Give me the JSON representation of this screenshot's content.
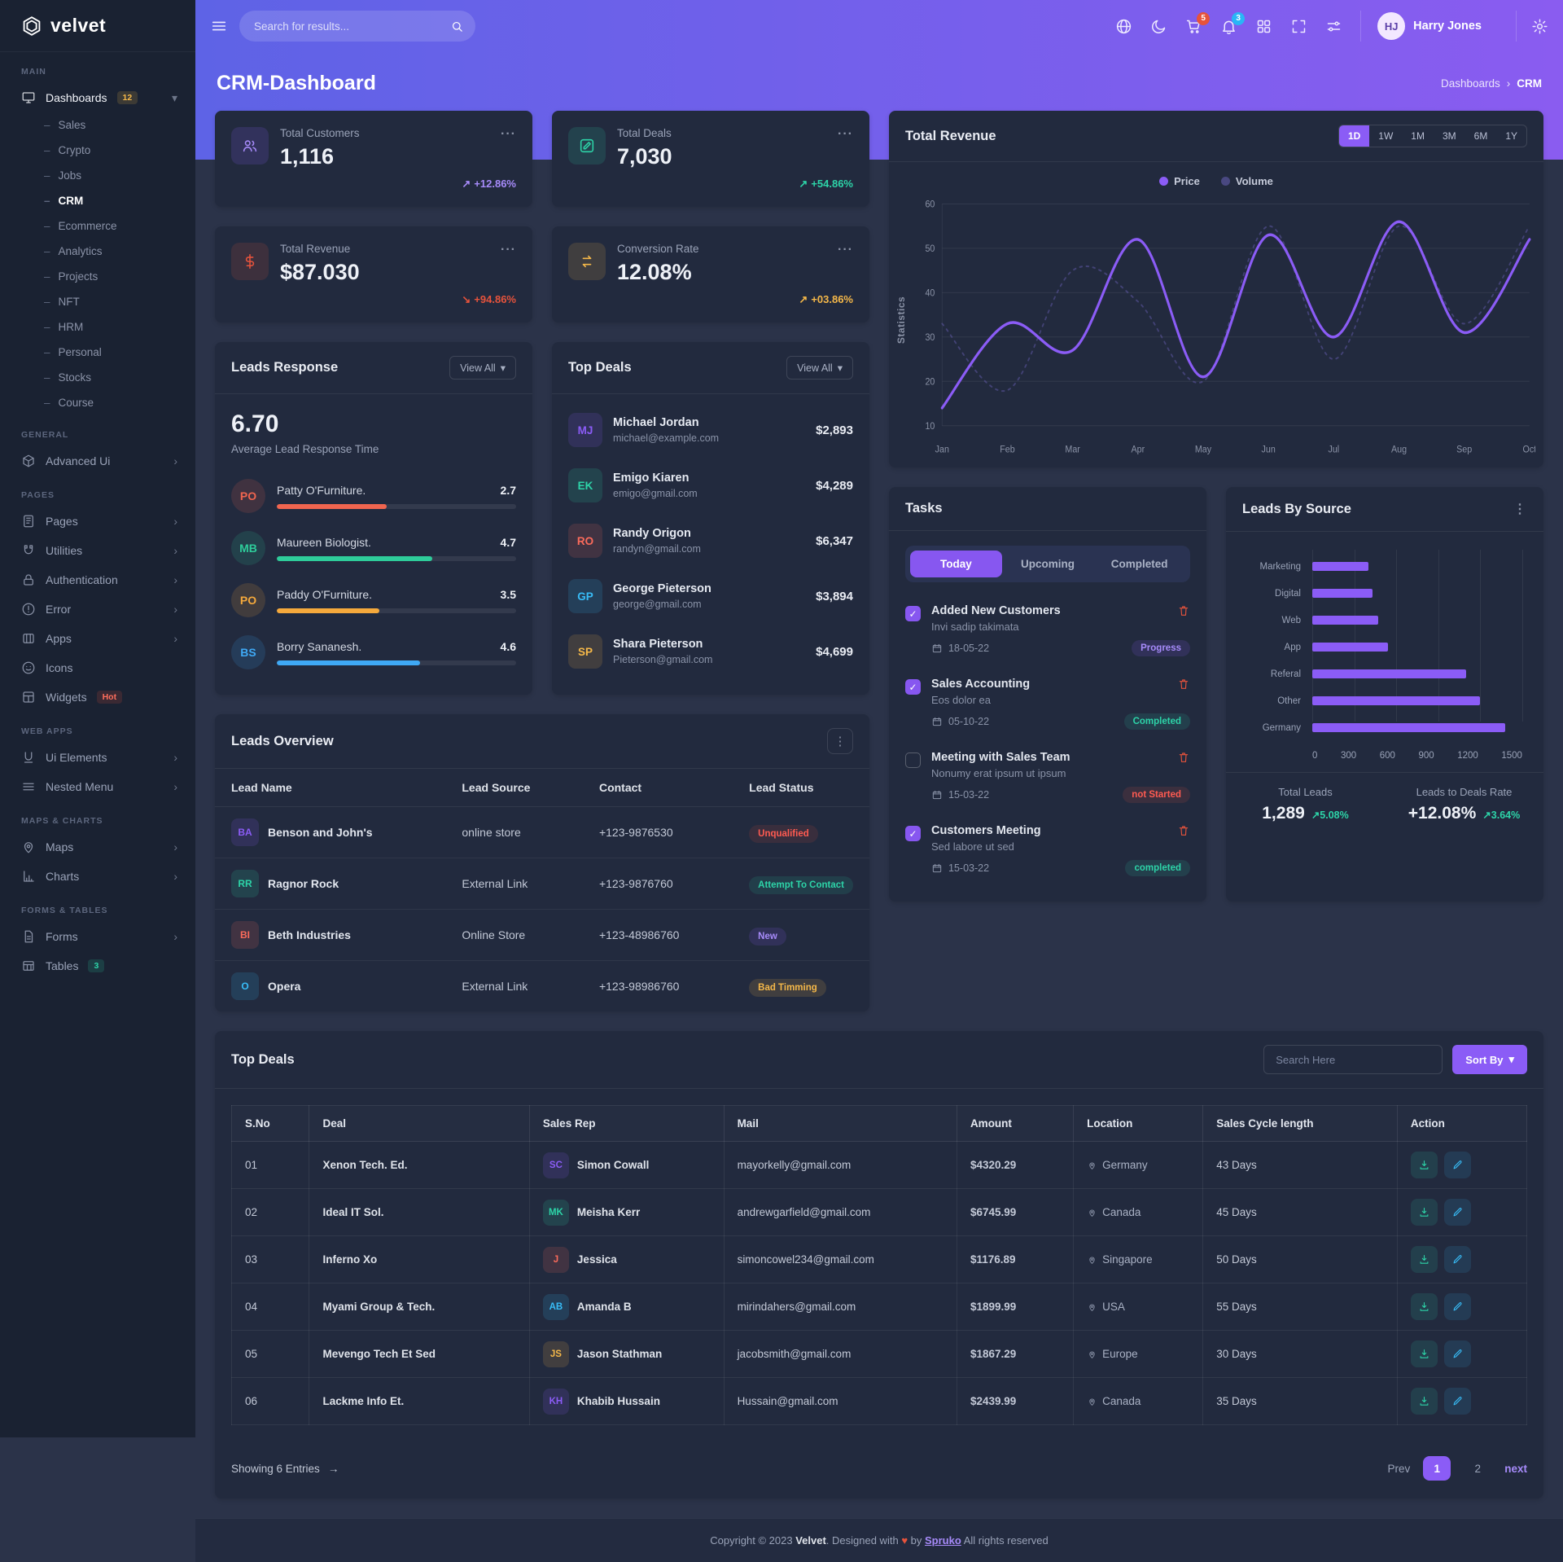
{
  "brand": {
    "name": "velvet"
  },
  "icons": {
    "ellipsis_h": "···",
    "ellipsis_v": "⋮",
    "chevron_down": "▾",
    "chevron_right": "›",
    "breadcrumb_sep": "›",
    "arrow_right": "→",
    "check": "✓",
    "heart": "♥",
    "dash": "–",
    "up_arrow": "↗"
  },
  "header": {
    "search_placeholder": "Search for results...",
    "cart_badge": "5",
    "bell_badge": "3",
    "user_name": "Harry Jones"
  },
  "page": {
    "title": "CRM-Dashboard",
    "breadcrumb_parent": "Dashboards",
    "breadcrumb_current": "CRM"
  },
  "sidebar": {
    "headings": [
      "MAIN",
      "GENERAL",
      "PAGES",
      "WEB APPS",
      "MAPS & CHARTS",
      "FORMS & TABLES"
    ],
    "dashboards": {
      "label": "Dashboards",
      "badge": "12",
      "children": [
        {
          "label": "Sales",
          "cls": ""
        },
        {
          "label": "Crypto",
          "cls": ""
        },
        {
          "label": "Jobs",
          "cls": ""
        },
        {
          "label": "CRM",
          "cls": "active"
        },
        {
          "label": "Ecommerce",
          "cls": ""
        },
        {
          "label": "Analytics",
          "cls": ""
        },
        {
          "label": "Projects",
          "cls": ""
        },
        {
          "label": "NFT",
          "cls": ""
        },
        {
          "label": "HRM",
          "cls": ""
        },
        {
          "label": "Personal",
          "cls": ""
        },
        {
          "label": "Stocks",
          "cls": ""
        },
        {
          "label": "Course",
          "cls": ""
        }
      ]
    },
    "items": {
      "advanced_ui": "Advanced Ui",
      "pages": "Pages",
      "utilities": "Utilities",
      "authentication": "Authentication",
      "error": "Error",
      "apps": "Apps",
      "icons": "Icons",
      "widgets": "Widgets",
      "widgets_badge": "Hot",
      "ui_elements": "Ui Elements",
      "nested_menu": "Nested Menu",
      "maps": "Maps",
      "charts": "Charts",
      "forms": "Forms",
      "tables": "Tables",
      "tables_badge": "3"
    }
  },
  "stats": [
    {
      "label": "Total Customers",
      "value": "1,116",
      "arrow": "↗",
      "delta": "+12.86%",
      "delta_color": "#a78bfa"
    },
    {
      "label": "Total Deals",
      "value": "7,030",
      "arrow": "↗",
      "delta": "+54.86%",
      "delta_color": "#2dd4a8"
    },
    {
      "label": "Total Revenue",
      "value": "$87.030",
      "arrow": "↘",
      "delta": "+94.86%",
      "delta_color": "#e6533c"
    },
    {
      "label": "Conversion Rate",
      "value": "12.08%",
      "arrow": "↗",
      "delta": "+03.86%",
      "delta_color": "#f5b849"
    }
  ],
  "leads_response": {
    "title": "Leads Response",
    "view_all_label": "View All",
    "score": "6.70",
    "caption": "Average Lead Response Time",
    "rows": [
      {
        "initials": "PO",
        "name": "Patty O'Furniture.",
        "value": "2.7",
        "pct": "46%",
        "color": "#f0654f"
      },
      {
        "initials": "MB",
        "name": "Maureen Biologist.",
        "value": "4.7",
        "pct": "65%",
        "color": "#2ecc9a"
      },
      {
        "initials": "PO",
        "name": "Paddy O'Furniture.",
        "value": "3.5",
        "pct": "43%",
        "color": "#f5a93c"
      },
      {
        "initials": "BS",
        "name": "Borry Sananesh.",
        "value": "4.6",
        "pct": "60%",
        "color": "#3fa9f5"
      }
    ]
  },
  "top_deals_list": {
    "title": "Top Deals",
    "view_all_label": "View All",
    "rows": [
      {
        "name": "Michael Jordan",
        "email": "michael@example.com",
        "amount": "$2,893"
      },
      {
        "name": "Emigo Kiaren",
        "email": "emigo@gmail.com",
        "amount": "$4,289"
      },
      {
        "name": "Randy Origon",
        "email": "randyn@gmail.com",
        "amount": "$6,347"
      },
      {
        "name": "George Pieterson",
        "email": "george@gmail.com",
        "amount": "$3,894"
      },
      {
        "name": "Shara Pieterson",
        "email": "Pieterson@gmail.com",
        "amount": "$4,699"
      }
    ]
  },
  "revenue": {
    "title": "Total Revenue",
    "ranges": [
      "1D",
      "1W",
      "1M",
      "3M",
      "6M",
      "1Y"
    ],
    "active_range": "1D"
  },
  "tasks": {
    "title": "Tasks",
    "tabs": [
      "Today",
      "Upcoming",
      "Completed"
    ],
    "active_tab": "Today",
    "items": [
      {
        "checked": true,
        "title": "Added New Customers",
        "desc": "Invi sadip takimata",
        "date": "18-05-22",
        "status": "Progress",
        "status_cls": "b-purple"
      },
      {
        "checked": true,
        "title": "Sales Accounting",
        "desc": "Eos dolor ea",
        "date": "05-10-22",
        "status": "Completed",
        "status_cls": "b-green"
      },
      {
        "checked": false,
        "title": "Meeting with Sales Team",
        "desc": "Nonumy erat ipsum ut ipsum",
        "date": "15-03-22",
        "status": "not Started",
        "status_cls": "b-red"
      },
      {
        "checked": true,
        "title": "Customers Meeting",
        "desc": "Sed labore ut sed",
        "date": "15-03-22",
        "status": "completed",
        "status_cls": "b-green"
      }
    ]
  },
  "leads_by_source": {
    "title": "Leads By Source",
    "total_leads_label": "Total Leads",
    "total_leads": "1,289",
    "total_leads_delta": "5.08%",
    "rate_label": "Leads to Deals Rate",
    "rate_value": "+12.08%",
    "rate_delta": "3.64%"
  },
  "leads_overview": {
    "title": "Leads Overview",
    "columns": [
      "Lead Name",
      "Lead Source",
      "Contact",
      "Lead Status"
    ],
    "rows": [
      {
        "name": "Benson and John's",
        "source": "online store",
        "contact": "+123-9876530",
        "status": "Unqualified",
        "status_cls": "st-red"
      },
      {
        "name": "Ragnor Rock",
        "source": "External Link",
        "contact": "+123-9876760",
        "status": "Attempt To Contact",
        "status_cls": "st-teal"
      },
      {
        "name": "Beth Industries",
        "source": "Online Store",
        "contact": "+123-48986760",
        "status": "New",
        "status_cls": "st-purple"
      },
      {
        "name": "Opera",
        "source": "External Link",
        "contact": "+123-98986760",
        "status": "Bad Timming",
        "status_cls": "st-orange"
      }
    ]
  },
  "deals_table": {
    "title": "Top Deals",
    "search_placeholder": "Search Here",
    "sort_label": "Sort By",
    "columns": [
      "S.No",
      "Deal",
      "Sales Rep",
      "Mail",
      "Amount",
      "Location",
      "Sales Cycle length",
      "Action"
    ],
    "rows": [
      {
        "no": "01",
        "deal": "Xenon Tech. Ed.",
        "rep": "Simon Cowall",
        "mail": "mayorkelly@gmail.com",
        "amount": "$4320.29",
        "location": "Germany",
        "cycle": "43 Days"
      },
      {
        "no": "02",
        "deal": "Ideal IT Sol.",
        "rep": "Meisha Kerr",
        "mail": "andrewgarfield@gmail.com",
        "amount": "$6745.99",
        "location": "Canada",
        "cycle": "45 Days"
      },
      {
        "no": "03",
        "deal": "Inferno Xo",
        "rep": "Jessica",
        "mail": "simoncowel234@gmail.com",
        "amount": "$1176.89",
        "location": "Singapore",
        "cycle": "50 Days"
      },
      {
        "no": "04",
        "deal": "Myami Group & Tech.",
        "rep": "Amanda B",
        "mail": "mirindahers@gmail.com",
        "amount": "$1899.99",
        "location": "USA",
        "cycle": "55 Days"
      },
      {
        "no": "05",
        "deal": "Mevengo Tech Et Sed",
        "rep": "Jason Stathman",
        "mail": "jacobsmith@gmail.com",
        "amount": "$1867.29",
        "location": "Europe",
        "cycle": "30 Days"
      },
      {
        "no": "06",
        "deal": "Lackme Info Et.",
        "rep": "Khabib Hussain",
        "mail": "Hussain@gmail.com",
        "amount": "$2439.99",
        "location": "Canada",
        "cycle": "35 Days"
      }
    ],
    "showing": "Showing 6 Entries",
    "prev": "Prev",
    "page1": "1",
    "page2": "2",
    "next": "next"
  },
  "chart_data": [
    {
      "type": "line",
      "title": "Total Revenue",
      "ylabel": "Statistics",
      "x": [
        "Jan",
        "Feb",
        "Mar",
        "Apr",
        "May",
        "Jun",
        "Jul",
        "Aug",
        "Sep",
        "Oct"
      ],
      "ylim": [
        10,
        60
      ],
      "ytick_step": 10,
      "grid": "horizontal",
      "legend_position": "top",
      "series": [
        {
          "name": "Price",
          "style": "solid",
          "color": "#8b5cf6",
          "values": [
            14,
            33,
            27,
            52,
            21,
            53,
            30,
            56,
            31,
            52
          ]
        },
        {
          "name": "Volume",
          "style": "dashed",
          "color": "#6a60b8",
          "values": [
            33,
            18,
            45,
            38,
            20,
            55,
            25,
            55,
            33,
            55
          ]
        }
      ]
    },
    {
      "type": "bar",
      "title": "Leads By Source",
      "orientation": "horizontal",
      "bar_color": "#8b5cf6",
      "categories": [
        "Marketing",
        "Digital",
        "Web",
        "App",
        "Referal",
        "Other",
        "Germany"
      ],
      "values": [
        400,
        430,
        470,
        540,
        1100,
        1200,
        1380
      ],
      "xlim": [
        0,
        1500
      ],
      "xticks": [
        0,
        300,
        600,
        900,
        1200,
        1500
      ]
    }
  ],
  "footer": {
    "pre": "Copyright © 2023",
    "brand": "Velvet",
    "mid": ". Designed with",
    "by": "by",
    "link": "Spruko",
    "post": "All rights reserved"
  }
}
